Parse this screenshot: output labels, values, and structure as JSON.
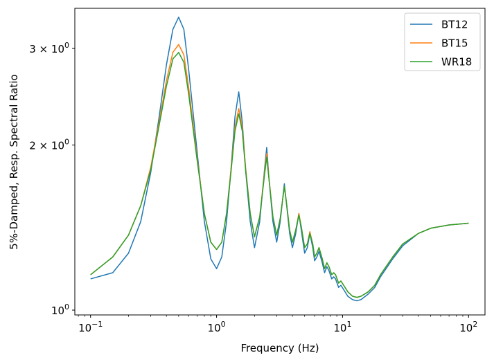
{
  "chart_data": {
    "type": "line",
    "title": "",
    "xlabel": "Frequency (Hz)",
    "ylabel": "5%-Damped, Resp. Spectral Ratio",
    "x_scale": "log",
    "y_scale": "log",
    "xlim": [
      0.075,
      135
    ],
    "ylim": [
      0.98,
      3.55
    ],
    "grid": false,
    "legend_position": "top-right",
    "x_ticks": [
      {
        "value": 0.1,
        "mant": "10",
        "exp": "−1"
      },
      {
        "value": 1,
        "mant": "10",
        "exp": "0"
      },
      {
        "value": 10,
        "mant": "10",
        "exp": "1"
      },
      {
        "value": 100,
        "mant": "10",
        "exp": "2"
      }
    ],
    "y_ticks": [
      {
        "value": 1,
        "mant": "10",
        "exp": "0"
      },
      {
        "value": 2,
        "mant": "2 × 10",
        "exp": "0"
      },
      {
        "value": 3,
        "mant": "3 × 10",
        "exp": "0"
      }
    ],
    "series": [
      {
        "name": "BT12",
        "color": "#1f77b4",
        "points": [
          [
            0.1,
            1.14
          ],
          [
            0.15,
            1.17
          ],
          [
            0.2,
            1.27
          ],
          [
            0.25,
            1.45
          ],
          [
            0.3,
            1.78
          ],
          [
            0.35,
            2.25
          ],
          [
            0.4,
            2.8
          ],
          [
            0.45,
            3.25
          ],
          [
            0.5,
            3.42
          ],
          [
            0.55,
            3.25
          ],
          [
            0.6,
            2.75
          ],
          [
            0.7,
            1.95
          ],
          [
            0.8,
            1.45
          ],
          [
            0.9,
            1.24
          ],
          [
            1.0,
            1.19
          ],
          [
            1.1,
            1.25
          ],
          [
            1.2,
            1.45
          ],
          [
            1.3,
            1.8
          ],
          [
            1.4,
            2.25
          ],
          [
            1.5,
            2.5
          ],
          [
            1.6,
            2.2
          ],
          [
            1.7,
            1.8
          ],
          [
            1.85,
            1.45
          ],
          [
            2.0,
            1.3
          ],
          [
            2.2,
            1.45
          ],
          [
            2.4,
            1.8
          ],
          [
            2.5,
            1.98
          ],
          [
            2.6,
            1.75
          ],
          [
            2.8,
            1.45
          ],
          [
            3.0,
            1.33
          ],
          [
            3.2,
            1.45
          ],
          [
            3.45,
            1.7
          ],
          [
            3.6,
            1.55
          ],
          [
            3.8,
            1.38
          ],
          [
            4.0,
            1.3
          ],
          [
            4.25,
            1.38
          ],
          [
            4.5,
            1.5
          ],
          [
            4.7,
            1.4
          ],
          [
            5.0,
            1.27
          ],
          [
            5.25,
            1.3
          ],
          [
            5.5,
            1.38
          ],
          [
            5.8,
            1.3
          ],
          [
            6.0,
            1.23
          ],
          [
            6.25,
            1.25
          ],
          [
            6.5,
            1.28
          ],
          [
            6.9,
            1.22
          ],
          [
            7.2,
            1.17
          ],
          [
            7.5,
            1.2
          ],
          [
            7.8,
            1.18
          ],
          [
            8.2,
            1.14
          ],
          [
            8.5,
            1.15
          ],
          [
            8.8,
            1.14
          ],
          [
            9.3,
            1.1
          ],
          [
            9.7,
            1.11
          ],
          [
            10.2,
            1.09
          ],
          [
            11,
            1.06
          ],
          [
            12,
            1.045
          ],
          [
            13,
            1.04
          ],
          [
            14,
            1.045
          ],
          [
            16,
            1.07
          ],
          [
            18,
            1.1
          ],
          [
            20,
            1.15
          ],
          [
            25,
            1.24
          ],
          [
            30,
            1.31
          ],
          [
            40,
            1.38
          ],
          [
            50,
            1.41
          ],
          [
            70,
            1.43
          ],
          [
            100,
            1.44
          ]
        ]
      },
      {
        "name": "BT15",
        "color": "#ff7f0e",
        "points": [
          [
            0.1,
            1.16
          ],
          [
            0.15,
            1.25
          ],
          [
            0.2,
            1.37
          ],
          [
            0.25,
            1.55
          ],
          [
            0.3,
            1.82
          ],
          [
            0.35,
            2.2
          ],
          [
            0.4,
            2.62
          ],
          [
            0.45,
            2.95
          ],
          [
            0.5,
            3.05
          ],
          [
            0.55,
            2.92
          ],
          [
            0.6,
            2.55
          ],
          [
            0.7,
            1.9
          ],
          [
            0.8,
            1.5
          ],
          [
            0.9,
            1.33
          ],
          [
            1.0,
            1.29
          ],
          [
            1.1,
            1.33
          ],
          [
            1.2,
            1.5
          ],
          [
            1.3,
            1.8
          ],
          [
            1.4,
            2.15
          ],
          [
            1.5,
            2.33
          ],
          [
            1.6,
            2.15
          ],
          [
            1.7,
            1.82
          ],
          [
            1.85,
            1.5
          ],
          [
            2.0,
            1.36
          ],
          [
            2.2,
            1.48
          ],
          [
            2.4,
            1.78
          ],
          [
            2.5,
            1.93
          ],
          [
            2.6,
            1.75
          ],
          [
            2.8,
            1.48
          ],
          [
            3.0,
            1.37
          ],
          [
            3.2,
            1.47
          ],
          [
            3.45,
            1.68
          ],
          [
            3.6,
            1.56
          ],
          [
            3.8,
            1.4
          ],
          [
            4.0,
            1.33
          ],
          [
            4.25,
            1.4
          ],
          [
            4.5,
            1.5
          ],
          [
            4.7,
            1.42
          ],
          [
            5.0,
            1.3
          ],
          [
            5.25,
            1.32
          ],
          [
            5.5,
            1.39
          ],
          [
            5.8,
            1.32
          ],
          [
            6.0,
            1.25
          ],
          [
            6.25,
            1.27
          ],
          [
            6.5,
            1.3
          ],
          [
            6.9,
            1.24
          ],
          [
            7.2,
            1.19
          ],
          [
            7.5,
            1.22
          ],
          [
            7.8,
            1.2
          ],
          [
            8.2,
            1.16
          ],
          [
            8.5,
            1.17
          ],
          [
            8.8,
            1.16
          ],
          [
            9.3,
            1.12
          ],
          [
            9.7,
            1.13
          ],
          [
            10.2,
            1.11
          ],
          [
            11,
            1.08
          ],
          [
            12,
            1.06
          ],
          [
            13,
            1.055
          ],
          [
            14,
            1.06
          ],
          [
            16,
            1.08
          ],
          [
            18,
            1.11
          ],
          [
            20,
            1.16
          ],
          [
            25,
            1.25
          ],
          [
            30,
            1.32
          ],
          [
            40,
            1.38
          ],
          [
            50,
            1.41
          ],
          [
            70,
            1.43
          ],
          [
            100,
            1.44
          ]
        ]
      },
      {
        "name": "WR18",
        "color": "#2ca02c",
        "points": [
          [
            0.1,
            1.16
          ],
          [
            0.15,
            1.25
          ],
          [
            0.2,
            1.37
          ],
          [
            0.25,
            1.55
          ],
          [
            0.3,
            1.8
          ],
          [
            0.35,
            2.17
          ],
          [
            0.4,
            2.56
          ],
          [
            0.45,
            2.87
          ],
          [
            0.5,
            2.95
          ],
          [
            0.55,
            2.83
          ],
          [
            0.6,
            2.48
          ],
          [
            0.7,
            1.88
          ],
          [
            0.8,
            1.5
          ],
          [
            0.9,
            1.33
          ],
          [
            1.0,
            1.29
          ],
          [
            1.1,
            1.33
          ],
          [
            1.2,
            1.5
          ],
          [
            1.3,
            1.78
          ],
          [
            1.4,
            2.12
          ],
          [
            1.5,
            2.28
          ],
          [
            1.6,
            2.12
          ],
          [
            1.7,
            1.8
          ],
          [
            1.85,
            1.5
          ],
          [
            2.0,
            1.36
          ],
          [
            2.2,
            1.48
          ],
          [
            2.4,
            1.76
          ],
          [
            2.5,
            1.9
          ],
          [
            2.6,
            1.74
          ],
          [
            2.8,
            1.48
          ],
          [
            3.0,
            1.37
          ],
          [
            3.2,
            1.47
          ],
          [
            3.45,
            1.68
          ],
          [
            3.6,
            1.56
          ],
          [
            3.8,
            1.4
          ],
          [
            4.0,
            1.33
          ],
          [
            4.25,
            1.4
          ],
          [
            4.5,
            1.49
          ],
          [
            4.7,
            1.42
          ],
          [
            5.0,
            1.3
          ],
          [
            5.25,
            1.32
          ],
          [
            5.5,
            1.38
          ],
          [
            5.8,
            1.32
          ],
          [
            6.0,
            1.25
          ],
          [
            6.25,
            1.27
          ],
          [
            6.5,
            1.3
          ],
          [
            6.9,
            1.24
          ],
          [
            7.2,
            1.19
          ],
          [
            7.5,
            1.22
          ],
          [
            7.8,
            1.2
          ],
          [
            8.2,
            1.16
          ],
          [
            8.5,
            1.17
          ],
          [
            8.8,
            1.16
          ],
          [
            9.3,
            1.12
          ],
          [
            9.7,
            1.13
          ],
          [
            10.2,
            1.11
          ],
          [
            11,
            1.08
          ],
          [
            12,
            1.06
          ],
          [
            13,
            1.055
          ],
          [
            14,
            1.06
          ],
          [
            16,
            1.08
          ],
          [
            18,
            1.11
          ],
          [
            20,
            1.16
          ],
          [
            25,
            1.25
          ],
          [
            30,
            1.32
          ],
          [
            40,
            1.38
          ],
          [
            50,
            1.41
          ],
          [
            70,
            1.43
          ],
          [
            100,
            1.44
          ]
        ]
      }
    ]
  }
}
